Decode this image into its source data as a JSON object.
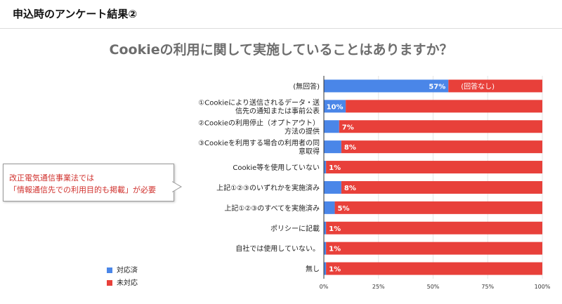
{
  "header": {
    "title": "申込時のアンケート結果②"
  },
  "colors": {
    "done": "#4a86e8",
    "not_done": "#e8403a",
    "axis": "#333333",
    "grid": "#e6e6e6"
  },
  "callout": {
    "lines": [
      "改正電気通信事業法では",
      "「情報通信先での利用目的も掲載」が必要"
    ]
  },
  "legend": [
    {
      "label": "対応済",
      "color": "#4a86e8"
    },
    {
      "label": "未対応",
      "color": "#e8403a"
    }
  ],
  "chart_data": {
    "type": "bar",
    "orientation": "horizontal",
    "stacked": true,
    "title": "Cookieの利用に関して実施していることはありますか？",
    "categories": [
      [
        "(無回答)"
      ],
      [
        "①Cookieにより送信されるデータ・送",
        "信先の通知または事前公表"
      ],
      [
        "②Cookieの利用停止（オプトアウト）",
        "方法の提供"
      ],
      [
        "③Cookieを利用する場合の利用者の同",
        "意取得"
      ],
      [
        "Cookie等を使用していない"
      ],
      [
        "上記①②③のいずれかを実施済み"
      ],
      [
        "上記①②③のすべてを実施済み"
      ],
      [
        "ポリシーに記載"
      ],
      [
        "自社では使用していない。"
      ],
      [
        "無し"
      ]
    ],
    "series": [
      {
        "name": "対応済",
        "values": [
          57,
          10,
          7,
          8,
          1,
          8,
          5,
          1,
          1,
          1
        ]
      },
      {
        "name": "未対応",
        "values": [
          43,
          90,
          93,
          92,
          99,
          92,
          95,
          99,
          99,
          99
        ]
      }
    ],
    "data_labels": [
      "57%",
      "10%",
      "7%",
      "8%",
      "1%",
      "8%",
      "5%",
      "1%",
      "1%",
      "1%"
    ],
    "annotations": [
      {
        "category_index": 0,
        "text": "(回答なし)"
      }
    ],
    "xlim": [
      0,
      100
    ],
    "xticks": [
      "0%",
      "25%",
      "50%",
      "75%",
      "100%"
    ],
    "legend_position": "bottom-left"
  }
}
